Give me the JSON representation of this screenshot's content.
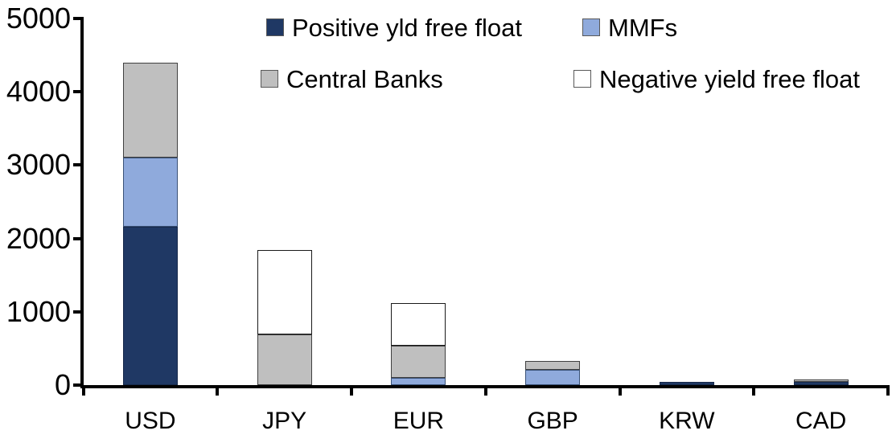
{
  "background": "#FFFFFF",
  "axis_color": "#000000",
  "chart_data": {
    "type": "bar",
    "stacked": true,
    "title": "",
    "xlabel": "",
    "ylabel": "",
    "grid": false,
    "legend_position": "top-inside-two-rows",
    "categories": [
      "USD",
      "JPY",
      "EUR",
      "GBP",
      "KRW",
      "CAD"
    ],
    "series": [
      {
        "name": "Positive yld free float",
        "color": "#1F3864",
        "border": "#17294A",
        "values": [
          2160,
          0,
          0,
          0,
          45,
          40
        ]
      },
      {
        "name": "MMFs",
        "color": "#8FAADC",
        "border": "#3A5277",
        "values": [
          940,
          0,
          100,
          210,
          0,
          0
        ]
      },
      {
        "name": "Central Banks",
        "color": "#BFBFBF",
        "border": "#404040",
        "values": [
          1300,
          690,
          435,
          120,
          0,
          40
        ]
      },
      {
        "name": "Negative yield free float",
        "color": "#FFFFFF",
        "border": "#1A1A1A",
        "values": [
          0,
          1155,
          580,
          0,
          0,
          0
        ]
      }
    ],
    "totals": [
      4400,
      1845,
      1115,
      330,
      45,
      80
    ],
    "ylim": [
      0,
      5000
    ],
    "ytick_interval": 1000,
    "yticks": [
      0,
      1000,
      2000,
      3000,
      4000,
      5000
    ],
    "ytick_labels": [
      "0",
      "1000",
      "2000",
      "3000",
      "4000",
      "5000"
    ]
  }
}
